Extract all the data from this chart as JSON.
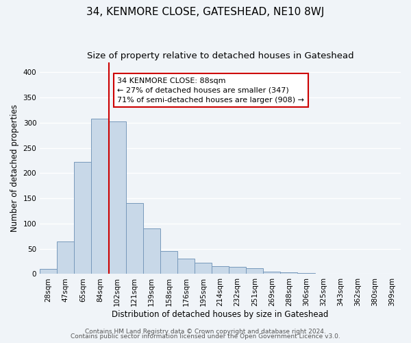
{
  "title": "34, KENMORE CLOSE, GATESHEAD, NE10 8WJ",
  "subtitle": "Size of property relative to detached houses in Gateshead",
  "xlabel": "Distribution of detached houses by size in Gateshead",
  "ylabel": "Number of detached properties",
  "bar_labels": [
    "28sqm",
    "47sqm",
    "65sqm",
    "84sqm",
    "102sqm",
    "121sqm",
    "139sqm",
    "158sqm",
    "176sqm",
    "195sqm",
    "214sqm",
    "232sqm",
    "251sqm",
    "269sqm",
    "288sqm",
    "306sqm",
    "325sqm",
    "343sqm",
    "362sqm",
    "380sqm",
    "399sqm"
  ],
  "bar_values": [
    10,
    65,
    222,
    308,
    303,
    141,
    90,
    46,
    31,
    23,
    16,
    14,
    12,
    5,
    3,
    2,
    1,
    1,
    1,
    1,
    1
  ],
  "bar_color": "#c8d8e8",
  "bar_edge_color": "#7799bb",
  "vline_x": 3.5,
  "vline_color": "#cc0000",
  "annotation_box_text": "34 KENMORE CLOSE: 88sqm\n← 27% of detached houses are smaller (347)\n71% of semi-detached houses are larger (908) →",
  "ylim": [
    0,
    420
  ],
  "yticks": [
    0,
    50,
    100,
    150,
    200,
    250,
    300,
    350,
    400
  ],
  "footnote1": "Contains HM Land Registry data © Crown copyright and database right 2024.",
  "footnote2": "Contains public sector information licensed under the Open Government Licence v3.0.",
  "bg_color": "#f0f4f8",
  "grid_color": "#ffffff",
  "title_fontsize": 11,
  "subtitle_fontsize": 9.5,
  "axis_fontsize": 8.5,
  "tick_fontsize": 7.5,
  "footnote_fontsize": 6.5,
  "annot_fontsize": 8
}
